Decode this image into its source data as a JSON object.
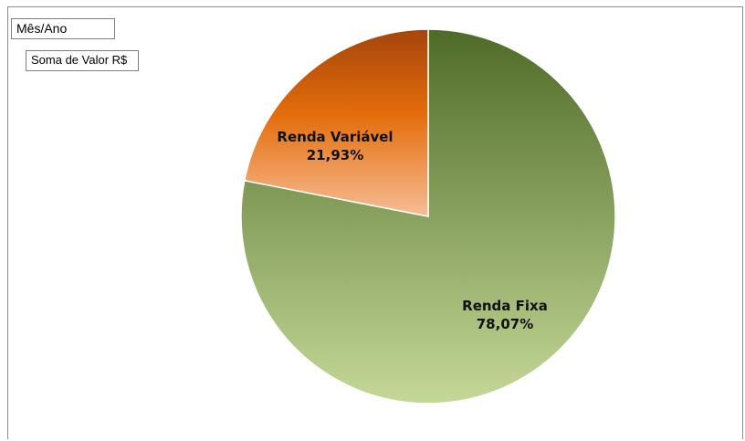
{
  "filters": {
    "page_field": "Mês/Ano",
    "data_field": "Soma de Valor R$"
  },
  "colors": {
    "renda_fixa_top": "#4f6b28",
    "renda_fixa_bottom": "#c4d897",
    "renda_variavel_top": "#a4450b",
    "renda_variavel_mid": "#e46c0a",
    "renda_variavel_bottom": "#f7bd95",
    "border": "#8c8c8c"
  },
  "chart_data": {
    "type": "pie",
    "title": "",
    "categories": [
      "Renda Fixa",
      "Renda Variável"
    ],
    "values": [
      78.07,
      21.93
    ],
    "labels": [
      {
        "name": "Renda Fixa",
        "percent": "78,07%"
      },
      {
        "name": "Renda Variável",
        "percent": "21,93%"
      }
    ],
    "start_angle_deg": 0,
    "direction": "clockwise",
    "legend": "none"
  }
}
